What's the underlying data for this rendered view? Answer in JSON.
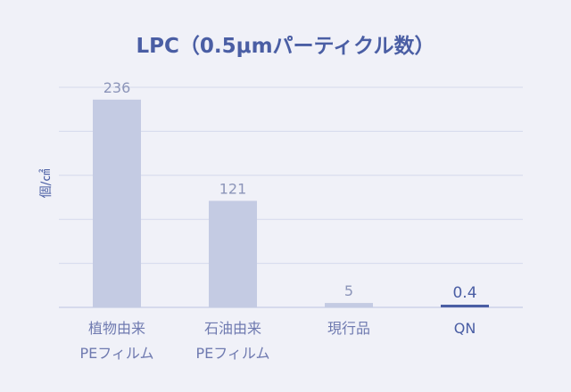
{
  "chart_data": {
    "type": "bar",
    "title": "LPC（0.5μmパーティクル数）",
    "ylabel": "個/㎠",
    "xlabel": "",
    "ylim": [
      0,
      250
    ],
    "grid": true,
    "categories": [
      [
        "植物由来",
        "PEフィルム"
      ],
      [
        "石油由来",
        "PEフィルム"
      ],
      [
        "現行品"
      ],
      [
        "QN"
      ]
    ],
    "values": [
      236,
      121,
      5,
      0.4
    ],
    "value_labels": [
      "236",
      "121",
      "5",
      "0.4"
    ],
    "highlight_index": 3,
    "colors": {
      "bar": "#c4cbe3",
      "highlight_bar": "#4a5ea4",
      "title": "#4a5ea4"
    }
  }
}
